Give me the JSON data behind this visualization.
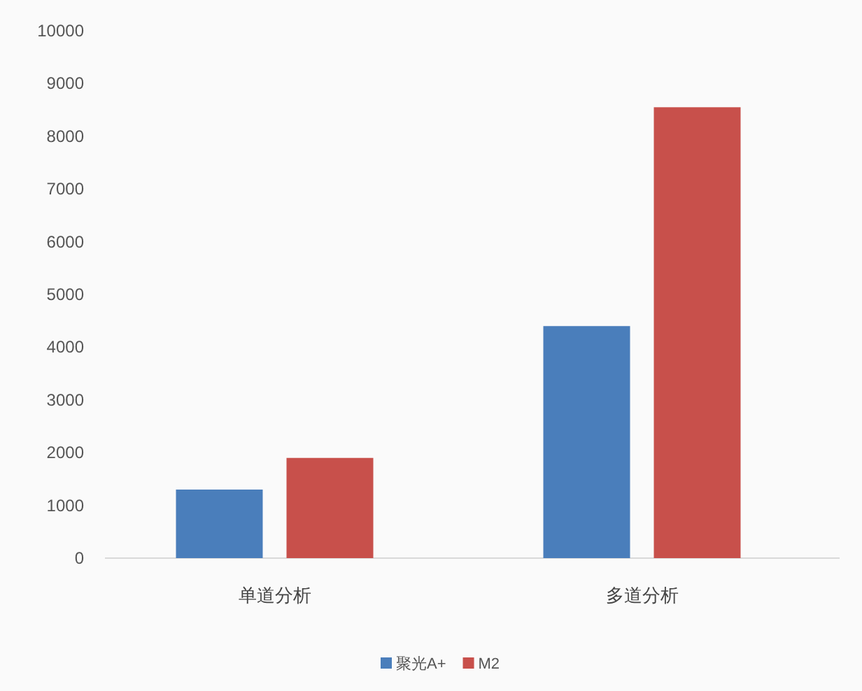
{
  "chart_data": {
    "type": "bar",
    "categories": [
      "单道分析",
      "多道分析"
    ],
    "series": [
      {
        "name": "聚光A+",
        "color": "#4a7ebb",
        "values": [
          1300,
          4400
        ]
      },
      {
        "name": "M2",
        "color": "#c8504b",
        "values": [
          1900,
          8550
        ]
      }
    ],
    "ylim": [
      0,
      10000
    ],
    "yticks": [
      0,
      1000,
      2000,
      3000,
      4000,
      5000,
      6000,
      7000,
      8000,
      9000,
      10000
    ],
    "grid": false,
    "legend": "bottom"
  }
}
